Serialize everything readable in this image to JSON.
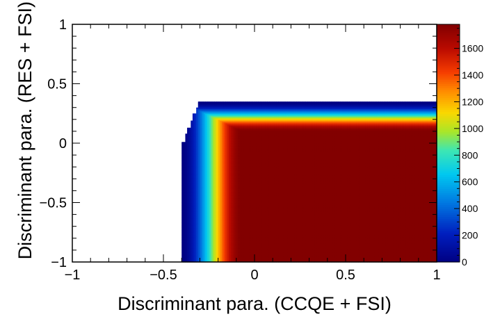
{
  "chart_data": {
    "type": "heatmap",
    "title": "",
    "xlabel": "Discriminant para. (CCQE + FSI)",
    "ylabel": "Discriminant para. (RES + FSI)",
    "xlim": [
      -1,
      1
    ],
    "ylim": [
      -1,
      1
    ],
    "x_ticks": [
      -1,
      -0.5,
      0,
      0.5,
      1
    ],
    "x_tick_labels": [
      "−1",
      "−0.5",
      "0",
      "0.5",
      "1"
    ],
    "y_ticks": [
      -1,
      -0.5,
      0,
      0.5,
      1
    ],
    "y_tick_labels": [
      "−1",
      "−0.5",
      "0",
      "0.5",
      "1"
    ],
    "z_range": [
      0,
      1780
    ],
    "colorbar_ticks": [
      0,
      200,
      400,
      600,
      800,
      1000,
      1200,
      1400,
      1600
    ],
    "colorbar_tick_labels": [
      "0",
      "200",
      "400",
      "600",
      "800",
      "1000",
      "1200",
      "1400",
      "1600"
    ],
    "region": {
      "x_min": -0.4,
      "x_max": 1.0,
      "y_min": -1.0,
      "y_max": 0.35,
      "x_ramp_start": -0.4,
      "x_ramp_end": -0.07,
      "y_ramp_start": 0.35,
      "y_ramp_end": 0.1,
      "z_max": 1780
    },
    "staircase": [
      {
        "x_from": -0.4,
        "y_top": 0.01
      },
      {
        "x_from": -0.38,
        "y_top": 0.08
      },
      {
        "x_from": -0.365,
        "y_top": 0.13
      },
      {
        "x_from": -0.35,
        "y_top": 0.19
      },
      {
        "x_from": -0.335,
        "y_top": 0.25
      },
      {
        "x_from": -0.32,
        "y_top": 0.3
      },
      {
        "x_from": -0.305,
        "y_top": 0.35
      }
    ]
  }
}
